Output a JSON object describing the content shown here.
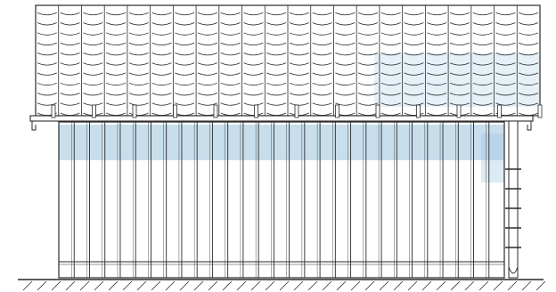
{
  "drawing": {
    "subject": "",
    "roof": {
      "tile_columns": 22,
      "tile_rows": 11
    },
    "wall": {
      "board_count": 29,
      "shaded_band": true
    },
    "downpipe": {
      "bracket_count": 5
    },
    "ground": {
      "hatching": true
    },
    "colors": {
      "line": "#2a2a2a",
      "shade": "#9cc3df",
      "paper": "#ffffff"
    }
  }
}
